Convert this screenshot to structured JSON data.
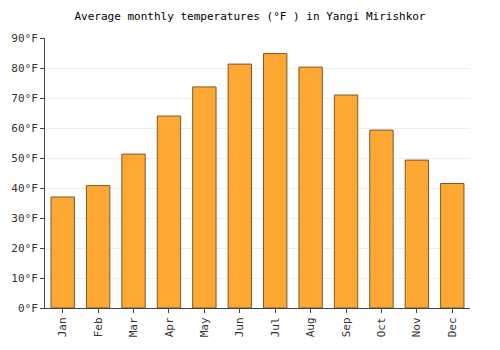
{
  "chart_data": {
    "type": "bar",
    "title": "Average monthly temperatures (°F ) in Yangi Mirishkor",
    "categories": [
      "Jan",
      "Feb",
      "Mar",
      "Apr",
      "May",
      "Jun",
      "Jul",
      "Aug",
      "Sep",
      "Oct",
      "Nov",
      "Dec"
    ],
    "values": [
      37,
      40.8,
      51.3,
      64,
      73.7,
      81.3,
      84.8,
      80.3,
      71,
      59.3,
      49.3,
      41.5
    ],
    "color": "#fca832",
    "ylim": [
      0,
      90
    ],
    "yticks": [
      {
        "value": 0,
        "label": "0°F"
      },
      {
        "value": 10,
        "label": "10°F"
      },
      {
        "value": 20,
        "label": "20°F"
      },
      {
        "value": 30,
        "label": "30°F"
      },
      {
        "value": 40,
        "label": "40°F"
      },
      {
        "value": 50,
        "label": "50°F"
      },
      {
        "value": 60,
        "label": "60°F"
      },
      {
        "value": 70,
        "label": "70°F"
      },
      {
        "value": 80,
        "label": "80°F"
      },
      {
        "value": 90,
        "label": "90°F"
      }
    ],
    "grid": true
  }
}
